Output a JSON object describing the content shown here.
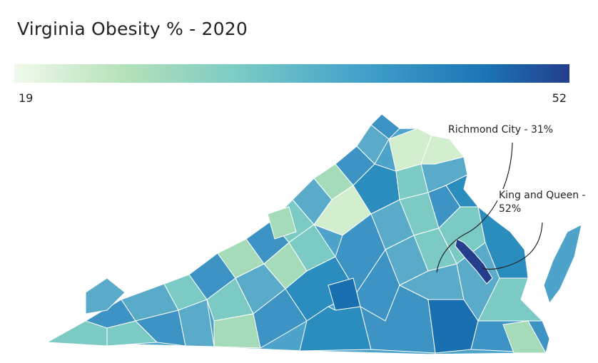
{
  "title": "Virginia Obesity % - 2020",
  "legend": {
    "min_label": "19",
    "max_label": "52",
    "colors": [
      "#f1faeb",
      "#b4e1b9",
      "#7bcbc4",
      "#43a2ca",
      "#1a74b4",
      "#243e8c"
    ]
  },
  "annotations": [
    {
      "text": "Richmond City - 31%"
    },
    {
      "text": "King and Queen - 52%"
    }
  ],
  "map": {
    "region": "Virginia counties",
    "fill_colors": [
      "#2b8cbe",
      "#3d94c4",
      "#5aabc9",
      "#7bcbc4",
      "#a6dbb9",
      "#d3eecf",
      "#1a6fb0",
      "#243e8c"
    ]
  }
}
